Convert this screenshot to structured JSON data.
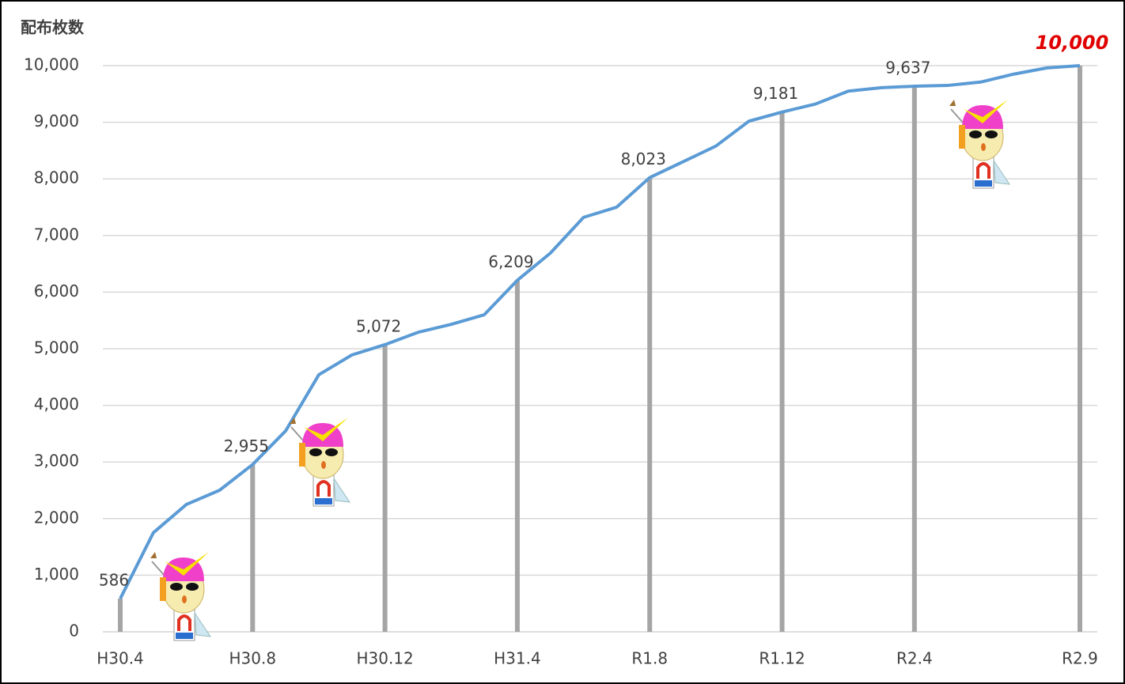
{
  "chart_data": {
    "type": "line",
    "y_label": "配布枚数",
    "categories": [
      "H30.4",
      null,
      null,
      null,
      "H30.8",
      null,
      null,
      null,
      "H30.12",
      null,
      null,
      null,
      "H31.4",
      null,
      null,
      null,
      "R1.8",
      null,
      null,
      null,
      "R1.12",
      null,
      null,
      null,
      "R2.4",
      null,
      null,
      null,
      null,
      "R2.9"
    ],
    "series": [
      {
        "color": "#5b9bd5",
        "values": [
          586,
          1750,
          2250,
          2500,
          2955,
          3550,
          4540,
          4890,
          5072,
          5290,
          5430,
          5600,
          6209,
          6690,
          7320,
          7500,
          8023,
          8300,
          8580,
          9020,
          9181,
          9320,
          9550,
          9610,
          9637,
          9650,
          9710,
          9850,
          9960,
          10000
        ],
        "value_labels": [
          "586",
          null,
          null,
          null,
          "2,955",
          null,
          null,
          null,
          "5,072",
          null,
          null,
          null,
          "6,209",
          null,
          null,
          null,
          "8,023",
          null,
          null,
          null,
          "9,181",
          null,
          null,
          null,
          "9,637",
          null,
          null,
          null,
          null,
          "10,000"
        ]
      }
    ],
    "drop_line_color": "#a5a5a5",
    "ylim": [
      0,
      10000
    ],
    "yticks": [
      0,
      {
        "value": 1000,
        "label": "1,000"
      },
      {
        "value": 2000,
        "label": "2,000"
      },
      {
        "value": 3000,
        "label": "3,000"
      },
      {
        "value": 4000,
        "label": "4,000"
      },
      {
        "value": 5000,
        "label": "5,000"
      },
      {
        "value": 6000,
        "label": "6,000"
      },
      {
        "value": 7000,
        "label": "7,000"
      },
      {
        "value": 8000,
        "label": "8,000"
      },
      {
        "value": 9000,
        "label": "9,000"
      },
      {
        "value": 10000,
        "label": "10,000"
      }
    ],
    "grid": true
  }
}
